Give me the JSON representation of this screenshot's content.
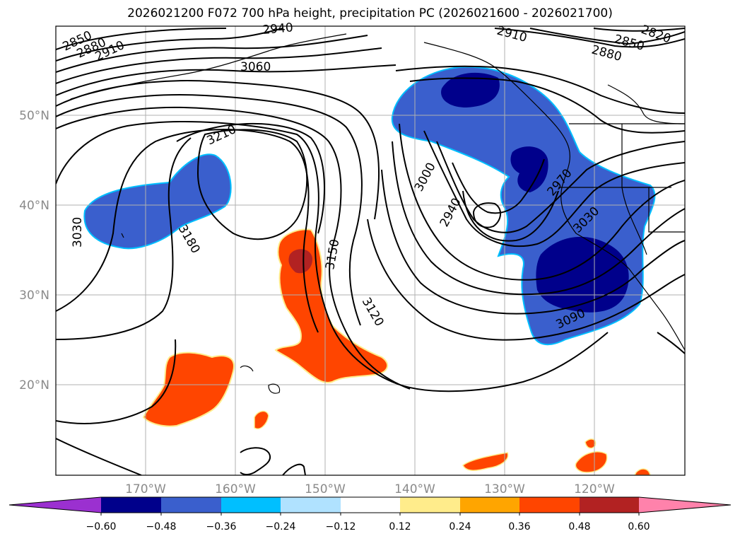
{
  "title": "2026021200 F072 700 hPa height, precipitation PC (2026021600 - 2026021700)",
  "map": {
    "lon_labels": [
      "170°W",
      "160°W",
      "150°W",
      "140°W",
      "130°W",
      "120°W"
    ],
    "lat_labels": [
      "50°N",
      "40°N",
      "30°N",
      "20°N"
    ],
    "contour_labels": [
      {
        "text": "2850"
      },
      {
        "text": "2880"
      },
      {
        "text": "2910"
      },
      {
        "text": "2940"
      },
      {
        "text": "3060"
      },
      {
        "text": "3210"
      },
      {
        "text": "3180"
      },
      {
        "text": "3030"
      },
      {
        "text": "3150"
      },
      {
        "text": "3120"
      },
      {
        "text": "3000"
      },
      {
        "text": "2940"
      },
      {
        "text": "2970"
      },
      {
        "text": "3030"
      },
      {
        "text": "3090"
      },
      {
        "text": "2910"
      },
      {
        "text": "2850"
      },
      {
        "text": "2880"
      },
      {
        "text": "2820"
      }
    ]
  },
  "colorbar": {
    "ticks": [
      "−0.60",
      "−0.48",
      "−0.36",
      "−0.24",
      "−0.12",
      "0.12",
      "0.24",
      "0.36",
      "0.48",
      "0.60"
    ],
    "colors": [
      "#9b30d0",
      "#00008b",
      "#3a5fcd",
      "#00bfff",
      "#b0e2ff",
      "#ffffff",
      "#ffec8b",
      "#ffa500",
      "#ff4500",
      "#b22222",
      "#ff82ab"
    ]
  }
}
